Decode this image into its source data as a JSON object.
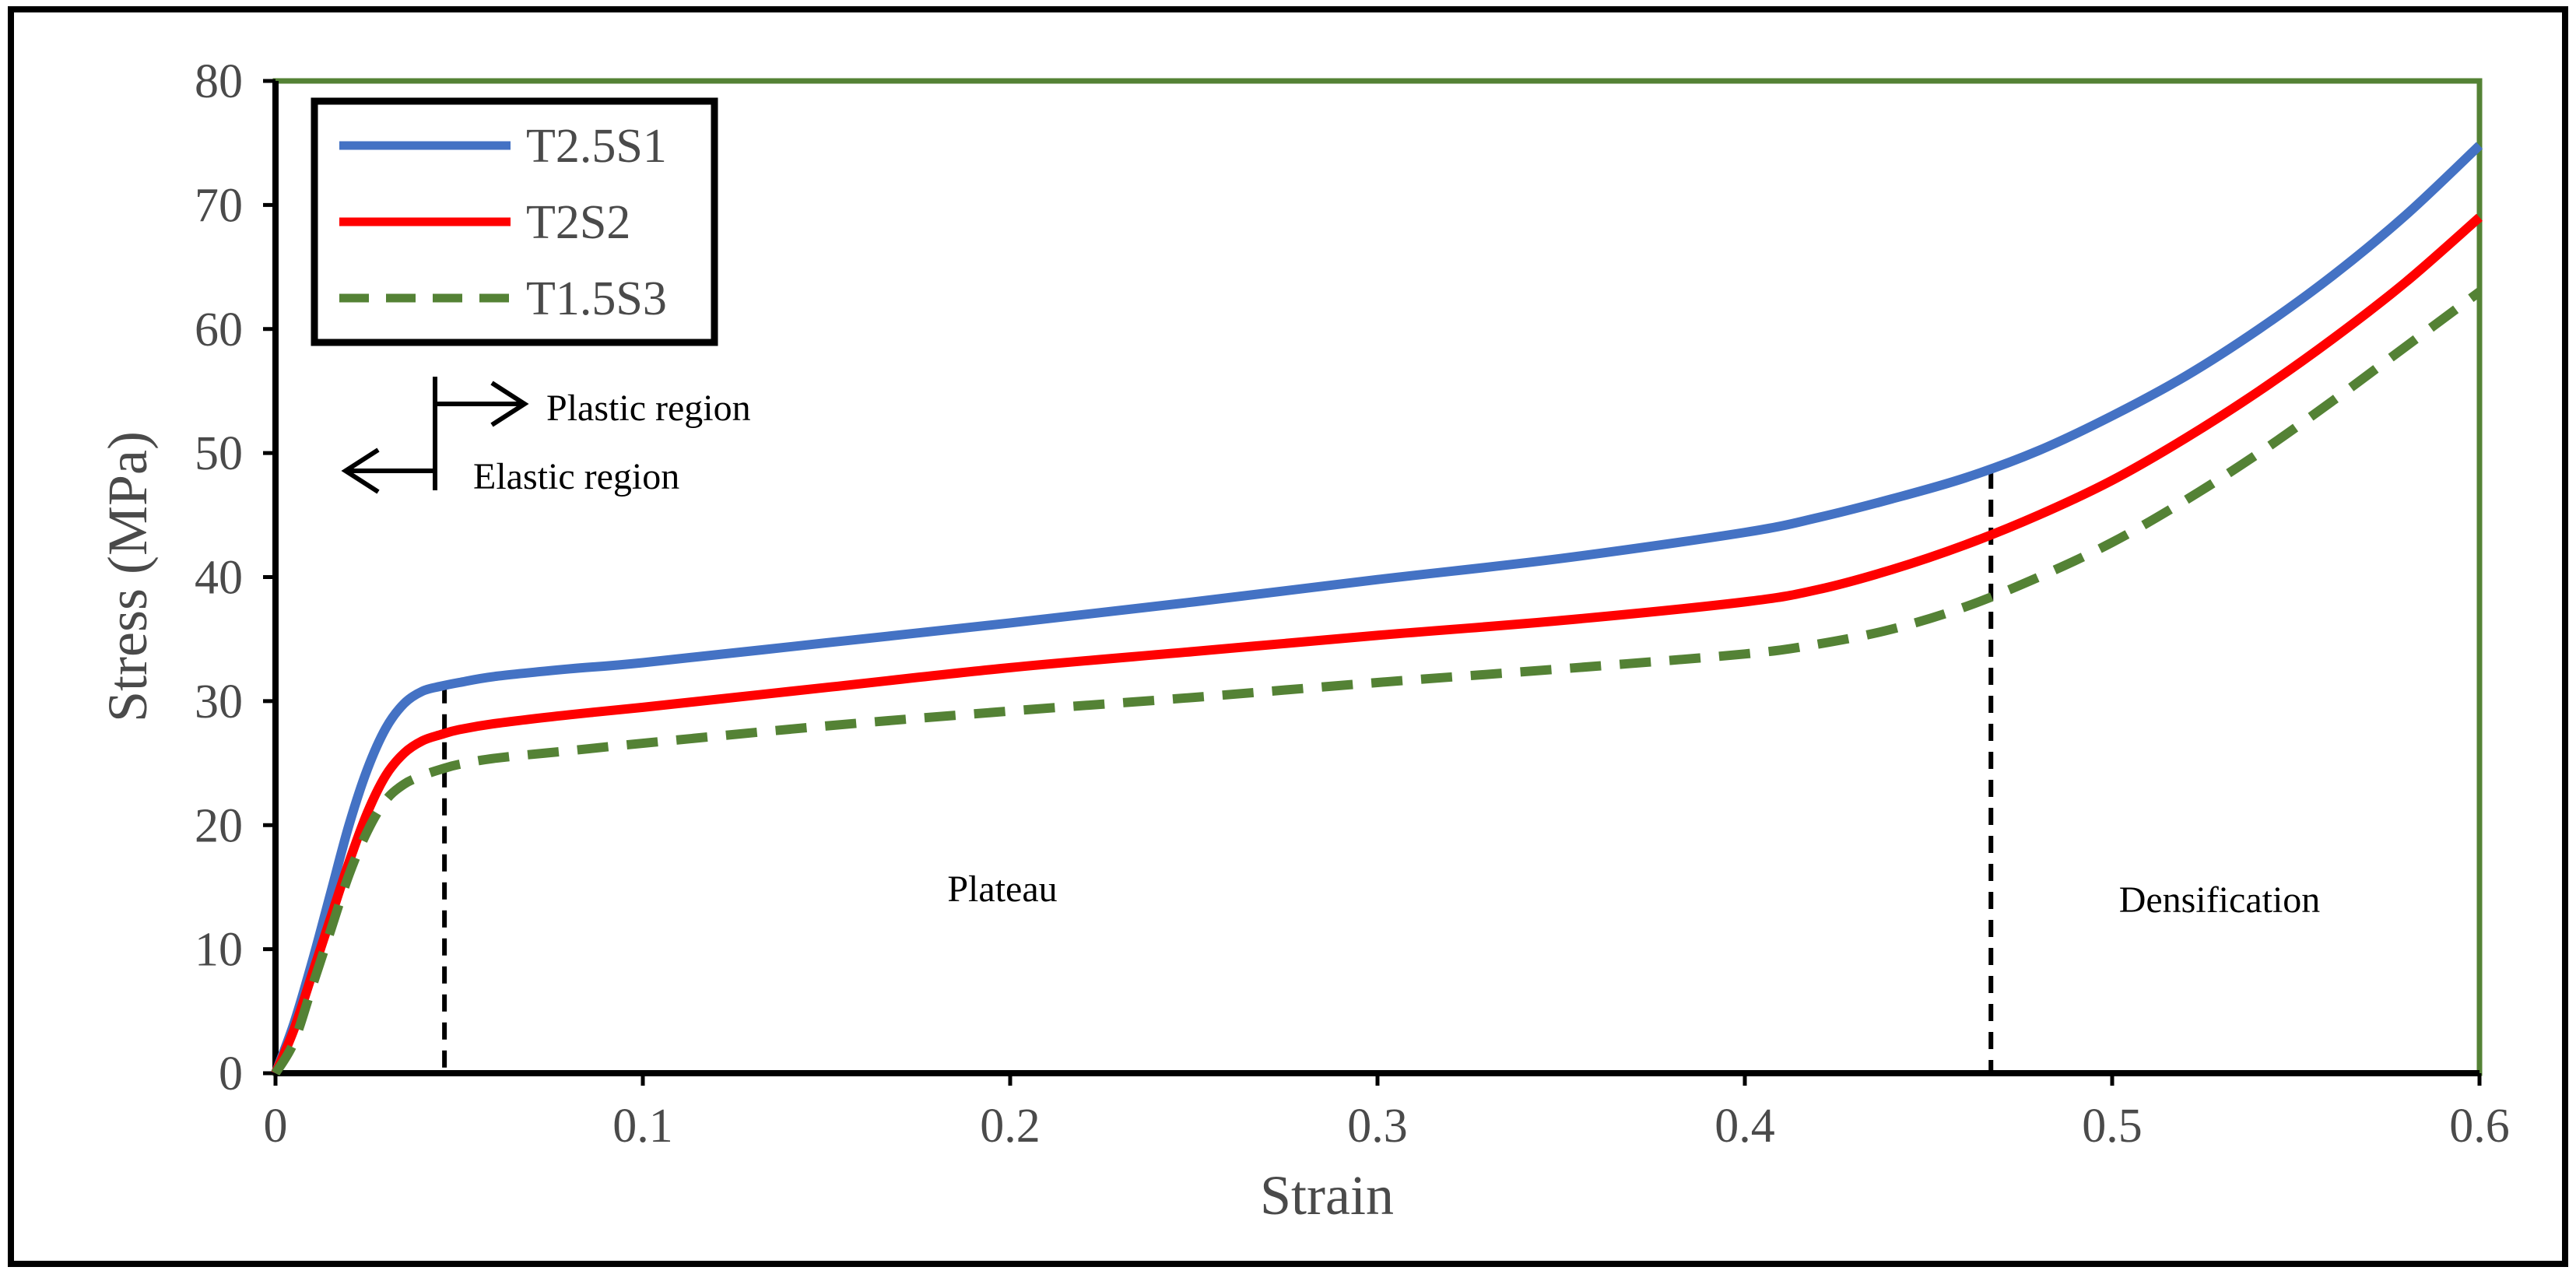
{
  "chart_data": {
    "type": "line",
    "title": "",
    "xlabel": "Strain",
    "ylabel": "Stress (MPa)",
    "xlim": [
      0,
      0.6
    ],
    "ylim": [
      0,
      80
    ],
    "x_ticks": [
      "0",
      "0.1",
      "0.2",
      "0.3",
      "0.4",
      "0.5",
      "0.6"
    ],
    "y_ticks": [
      "0",
      "10",
      "20",
      "30",
      "40",
      "50",
      "60",
      "70",
      "80"
    ],
    "grid": false,
    "legend_position": "top-left",
    "series": [
      {
        "name": "T2.5S1",
        "color": "#4472C4",
        "style": "solid",
        "x": [
          0,
          0.005,
          0.01,
          0.015,
          0.02,
          0.025,
          0.03,
          0.035,
          0.04,
          0.045,
          0.05,
          0.06,
          0.08,
          0.1,
          0.15,
          0.2,
          0.25,
          0.3,
          0.35,
          0.4,
          0.42,
          0.44,
          0.46,
          0.48,
          0.5,
          0.52,
          0.54,
          0.56,
          0.58,
          0.6
        ],
        "y": [
          0,
          4,
          9,
          14.5,
          20,
          24.5,
          27.8,
          29.8,
          30.8,
          31.2,
          31.5,
          32,
          32.6,
          33.1,
          34.7,
          36.3,
          38,
          39.8,
          41.5,
          43.6,
          44.8,
          46.3,
          48,
          50.2,
          53,
          56.2,
          60,
          64.3,
          69.2,
          74.8
        ]
      },
      {
        "name": "T2S2",
        "color": "#FF0000",
        "style": "solid",
        "x": [
          0,
          0.005,
          0.01,
          0.015,
          0.02,
          0.025,
          0.03,
          0.035,
          0.04,
          0.045,
          0.05,
          0.06,
          0.08,
          0.1,
          0.15,
          0.2,
          0.25,
          0.3,
          0.35,
          0.4,
          0.42,
          0.44,
          0.46,
          0.48,
          0.5,
          0.52,
          0.54,
          0.56,
          0.58,
          0.6
        ],
        "y": [
          0,
          3.5,
          8,
          12.5,
          17,
          21,
          24,
          25.8,
          26.8,
          27.3,
          27.7,
          28.2,
          28.9,
          29.5,
          31.1,
          32.7,
          34,
          35.3,
          36.5,
          38,
          39,
          40.6,
          42.6,
          45,
          47.8,
          51.2,
          55,
          59.2,
          63.8,
          69
        ]
      },
      {
        "name": "T1.5S3",
        "color": "#548235",
        "style": "dashed",
        "x": [
          0,
          0.005,
          0.01,
          0.015,
          0.02,
          0.025,
          0.03,
          0.035,
          0.04,
          0.045,
          0.05,
          0.06,
          0.08,
          0.1,
          0.15,
          0.2,
          0.25,
          0.3,
          0.35,
          0.4,
          0.42,
          0.44,
          0.46,
          0.48,
          0.5,
          0.52,
          0.54,
          0.56,
          0.58,
          0.6
        ],
        "y": [
          0,
          2.5,
          7,
          11.5,
          16,
          19.5,
          22,
          23.3,
          24,
          24.5,
          24.9,
          25.4,
          26,
          26.6,
          28,
          29.2,
          30.3,
          31.5,
          32.6,
          33.8,
          34.6,
          35.8,
          37.6,
          40,
          42.8,
          46.2,
          50,
          54.2,
          58.6,
          63
        ]
      }
    ],
    "vertical_markers": [
      {
        "x": 0.046,
        "y": 31.2
      },
      {
        "x": 0.467,
        "y": 48.5
      }
    ],
    "annotations": {
      "plastic": "Plastic region",
      "elastic": "Elastic region",
      "plateau": "Plateau",
      "densification": "Densification"
    }
  }
}
